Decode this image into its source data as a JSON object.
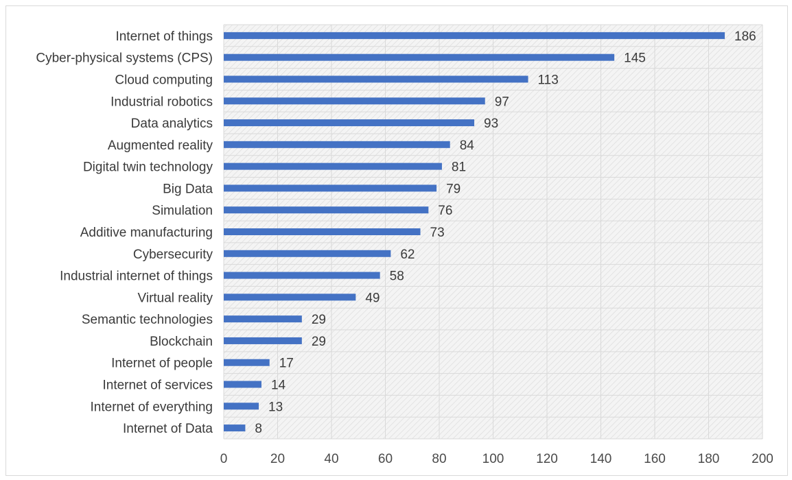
{
  "chart_data": {
    "type": "bar",
    "orientation": "horizontal",
    "title": "",
    "xlabel": "",
    "ylabel": "",
    "categories": [
      "Internet of things",
      "Cyber-physical systems (CPS)",
      "Cloud computing",
      "Industrial robotics",
      "Data analytics",
      "Augmented reality",
      "Digital twin technology",
      "Big Data",
      "Simulation",
      "Additive manufacturing",
      "Cybersecurity",
      "Industrial internet of things",
      "Virtual reality",
      "Semantic technologies",
      "Blockchain",
      "Internet of people",
      "Internet of services",
      "Internet of everything",
      "Internet of Data"
    ],
    "values": [
      186,
      145,
      113,
      97,
      93,
      84,
      81,
      79,
      76,
      73,
      62,
      58,
      49,
      29,
      29,
      17,
      14,
      13,
      8
    ],
    "xlim": [
      0,
      200
    ],
    "xticks": [
      0,
      20,
      40,
      60,
      80,
      100,
      120,
      140,
      160,
      180,
      200
    ],
    "grid": true,
    "grid_axis": "both",
    "legend": "none",
    "data_labels": true,
    "colors": {
      "bar": "#4472c4",
      "plot_background": "#f2f2f2",
      "gridline": "#d9d9d9",
      "text": "#3a3a3a"
    }
  }
}
